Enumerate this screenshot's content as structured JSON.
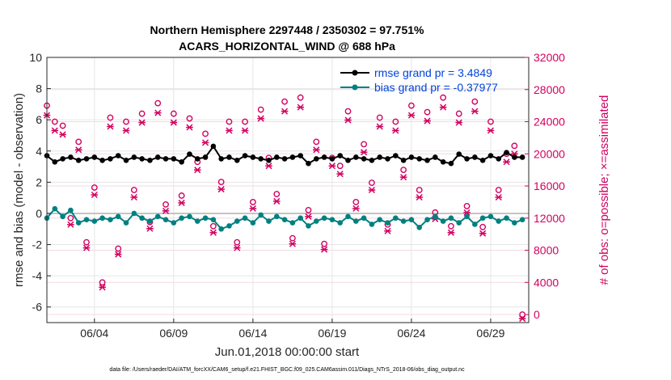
{
  "chart_data": {
    "type": "line",
    "title": "Northern Hemisphere 2297448 / 2350302 = 97.751%",
    "subtitle": "ACARS_HORIZONTAL_WIND @ 688 hPa",
    "xlabel": "Jun.01,2018 00:00:00 start",
    "ylabel": "rmse and bias (model - observation)",
    "ylabel_right": "# of obs: o=possible; ×=assimilated",
    "x_tick_labels": [
      "06/04",
      "06/09",
      "06/14",
      "06/19",
      "06/24",
      "06/29"
    ],
    "x_ticks": [
      4,
      9,
      14,
      19,
      24,
      29
    ],
    "xlim": [
      1,
      31.4
    ],
    "ylim": [
      -7,
      10
    ],
    "y_ticks": [
      -6,
      -4,
      -2,
      0,
      2,
      4,
      6,
      8,
      10
    ],
    "y_tick_labels": [
      "-6",
      "-4",
      "-2",
      "0",
      "2",
      "4",
      "6",
      "8",
      "10"
    ],
    "ylim_right": [
      -1000,
      32000
    ],
    "y_right_ticks": [
      0,
      4000,
      8000,
      12000,
      16000,
      20000,
      24000,
      28000,
      32000
    ],
    "y_right_tick_labels": [
      "0",
      "4000",
      "8000",
      "12000",
      "16000",
      "20000",
      "24000",
      "28000",
      "32000"
    ],
    "grid": true,
    "legend_position": "top-right",
    "series": [
      {
        "name": "rmse grand pr = 3.4849",
        "color": "#000000",
        "axis": "left",
        "x": [
          1,
          1.5,
          2,
          2.5,
          3,
          3.5,
          4,
          4.5,
          5,
          5.5,
          6,
          6.5,
          7,
          7.5,
          8,
          8.5,
          9,
          9.5,
          10,
          10.5,
          11,
          11.5,
          12,
          12.5,
          13,
          13.5,
          14,
          14.5,
          15,
          15.5,
          16,
          16.5,
          17,
          17.5,
          18,
          18.5,
          19,
          19.5,
          20,
          20.5,
          21,
          21.5,
          22,
          22.5,
          23,
          23.5,
          24,
          24.5,
          25,
          25.5,
          26,
          26.5,
          27,
          27.5,
          28,
          28.5,
          29,
          29.5,
          30,
          30.5,
          31
        ],
        "values": [
          3.7,
          3.3,
          3.5,
          3.6,
          3.4,
          3.5,
          3.6,
          3.4,
          3.5,
          3.7,
          3.4,
          3.6,
          3.5,
          3.4,
          3.6,
          3.5,
          3.5,
          3.3,
          3.8,
          3.5,
          3.6,
          4.3,
          3.5,
          3.6,
          3.4,
          3.7,
          3.6,
          3.5,
          3.4,
          3.6,
          3.5,
          3.6,
          3.7,
          3.2,
          3.5,
          3.6,
          3.5,
          3.7,
          3.4,
          3.6,
          3.5,
          3.4,
          3.6,
          3.5,
          3.7,
          3.4,
          3.6,
          3.5,
          3.4,
          3.6,
          3.3,
          3.2,
          3.8,
          3.5,
          3.6,
          3.4,
          3.7,
          3.5,
          3.9,
          3.6,
          3.6
        ]
      },
      {
        "name": "bias grand pr = -0.37977",
        "color": "#008080",
        "axis": "left",
        "x": [
          1,
          1.5,
          2,
          2.5,
          3,
          3.5,
          4,
          4.5,
          5,
          5.5,
          6,
          6.5,
          7,
          7.5,
          8,
          8.5,
          9,
          9.5,
          10,
          10.5,
          11,
          11.5,
          12,
          12.5,
          13,
          13.5,
          14,
          14.5,
          15,
          15.5,
          16,
          16.5,
          17,
          17.5,
          18,
          18.5,
          19,
          19.5,
          20,
          20.5,
          21,
          21.5,
          22,
          22.5,
          23,
          23.5,
          24,
          24.5,
          25,
          25.5,
          26,
          26.5,
          27,
          27.5,
          28,
          28.5,
          29,
          29.5,
          30,
          30.5,
          31
        ],
        "values": [
          -0.3,
          0.3,
          -0.2,
          0.2,
          -0.6,
          -0.4,
          -0.5,
          -0.3,
          -0.4,
          -0.2,
          -0.6,
          0.0,
          -0.3,
          -0.5,
          -0.2,
          -0.4,
          -0.6,
          -0.3,
          -0.2,
          -0.5,
          -0.3,
          -0.4,
          -1.0,
          -0.8,
          -0.5,
          -0.3,
          -0.6,
          -0.1,
          -0.5,
          -0.2,
          -0.4,
          -0.6,
          -0.3,
          -0.8,
          -0.5,
          -0.3,
          -0.4,
          -0.6,
          -0.2,
          -0.5,
          -0.3,
          -0.7,
          -0.4,
          -0.6,
          -0.3,
          -0.5,
          -0.4,
          -0.9,
          -0.4,
          -0.2,
          -0.5,
          -0.3,
          -0.6,
          -0.2,
          -0.7,
          -0.3,
          -0.2,
          -0.5,
          -0.3,
          -0.6,
          -0.4
        ]
      },
      {
        "name": "obs possible",
        "color": "#d40060",
        "axis": "right",
        "marker": "o",
        "x": [
          1,
          1.5,
          2,
          2.5,
          3,
          3.5,
          4,
          4.5,
          5,
          5.5,
          6,
          6.5,
          7,
          7.5,
          8,
          8.5,
          9,
          9.5,
          10,
          10.5,
          11,
          11.5,
          12,
          12.5,
          13,
          13.5,
          14,
          14.5,
          15,
          15.5,
          16,
          16.5,
          17,
          17.5,
          18,
          18.5,
          19,
          19.5,
          20,
          20.5,
          21,
          21.5,
          22,
          22.5,
          23,
          23.5,
          24,
          24.5,
          25,
          25.5,
          26,
          26.5,
          27,
          27.5,
          28,
          28.5,
          29,
          29.5,
          30,
          30.5,
          31
        ],
        "values": [
          26000,
          24000,
          23500,
          12000,
          21500,
          9000,
          15800,
          4000,
          24500,
          8200,
          24000,
          15500,
          25000,
          11500,
          26300,
          13700,
          25000,
          14800,
          24400,
          19000,
          22500,
          11000,
          16500,
          24000,
          9000,
          24000,
          14000,
          25500,
          19500,
          15000,
          26500,
          9500,
          27000,
          13000,
          21500,
          8800,
          19500,
          18500,
          25300,
          14000,
          21200,
          16400,
          24500,
          11200,
          24000,
          18000,
          26000,
          15500,
          25200,
          12700,
          27000,
          11000,
          25000,
          13500,
          26500,
          10900,
          24000,
          15500,
          20000,
          21000,
          0
        ]
      },
      {
        "name": "obs assimilated",
        "color": "#d40060",
        "axis": "right",
        "marker": "x",
        "x": [
          1,
          1.5,
          2,
          2.5,
          3,
          3.5,
          4,
          4.5,
          5,
          5.5,
          6,
          6.5,
          7,
          7.5,
          8,
          8.5,
          9,
          9.5,
          10,
          10.5,
          11,
          11.5,
          12,
          12.5,
          13,
          13.5,
          14,
          14.5,
          15,
          15.5,
          16,
          16.5,
          17,
          17.5,
          18,
          18.5,
          19,
          19.5,
          20,
          20.5,
          21,
          21.5,
          22,
          22.5,
          23,
          23.5,
          24,
          24.5,
          25,
          25.5,
          26,
          26.5,
          27,
          27.5,
          28,
          28.5,
          29,
          29.5,
          30,
          30.5,
          31
        ],
        "values": [
          25300,
          23400,
          22900,
          11700,
          21000,
          8800,
          15400,
          3900,
          23900,
          8000,
          23400,
          15100,
          24400,
          11200,
          25600,
          13400,
          24400,
          14400,
          23800,
          18500,
          21900,
          10700,
          16100,
          23400,
          8800,
          23400,
          13700,
          24900,
          19000,
          14600,
          25800,
          9300,
          26300,
          12700,
          21000,
          8600,
          19000,
          18000,
          24700,
          13700,
          20700,
          16000,
          23900,
          10900,
          23400,
          17600,
          25300,
          15100,
          24600,
          12400,
          26300,
          10700,
          24400,
          13200,
          25800,
          10600,
          23400,
          15100,
          19500,
          20500,
          0
        ]
      }
    ]
  },
  "legend": {
    "rmse": "rmse grand pr = 3.4849",
    "bias": "bias grand pr = -0.37977"
  },
  "footer": "data file: /Users/raeder/DAI/ATM_forcXX/CAM6_setup/f.e21.FHIST_BGC.f09_025.CAM6assim.011/Diags_NTrS_2018-06/obs_diag_output.nc"
}
